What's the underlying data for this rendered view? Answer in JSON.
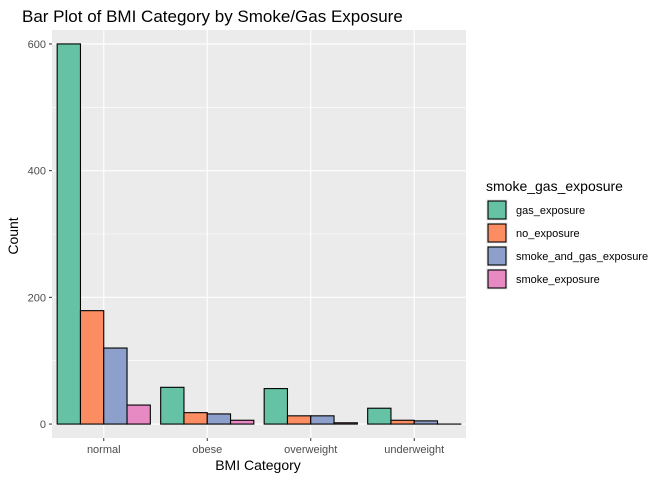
{
  "chart_data": {
    "type": "bar",
    "title": "Bar Plot of BMI Category by Smoke/Gas Exposure",
    "xlabel": "BMI Category",
    "ylabel": "Count",
    "categories": [
      "normal",
      "obese",
      "overweight",
      "underweight"
    ],
    "ylim": [
      -22,
      622
    ],
    "yticks": [
      0,
      200,
      400,
      600
    ],
    "grid": true,
    "legend_title": "smoke_gas_exposure",
    "legend_position": "right",
    "series": [
      {
        "name": "gas_exposure",
        "color": "#66c2a5",
        "values": [
          600,
          58,
          56,
          25
        ]
      },
      {
        "name": "no_exposure",
        "color": "#fc8d62",
        "values": [
          179,
          18,
          13,
          6
        ]
      },
      {
        "name": "smoke_and_gas_exposure",
        "color": "#8da0cb",
        "values": [
          120,
          16,
          13,
          5
        ]
      },
      {
        "name": "smoke_exposure",
        "color": "#e78ac3",
        "values": [
          30,
          6,
          2,
          0
        ]
      }
    ]
  }
}
